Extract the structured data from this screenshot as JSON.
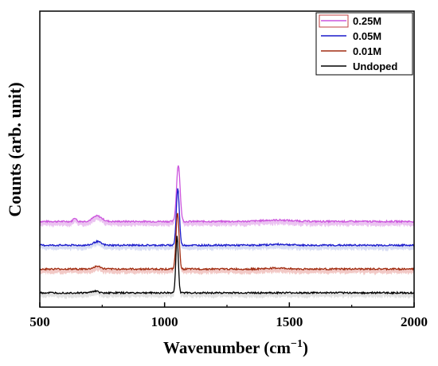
{
  "chart_data": {
    "type": "line",
    "title": "",
    "xlabel": "Wavenumber (cm",
    "xlabel_superscript": "−1",
    "xlabel_suffix": ")",
    "ylabel": "Counts (arb. unit)",
    "xlim": [
      500,
      2000
    ],
    "x_ticks": [
      500,
      1000,
      1500,
      2000
    ],
    "y_ticks_shown": false,
    "grid": false,
    "legend_position": "top-right",
    "legend": [
      "0.25M",
      "0.05M",
      "0.01M",
      "Undoped"
    ],
    "series": [
      {
        "name": "0.25M",
        "color": "#cc55dd",
        "fill": "#e8b8ee",
        "baseline": 0.78,
        "peaks": [
          {
            "center": 1055,
            "height": 0.62,
            "width": 7
          },
          {
            "center": 640,
            "height": 0.04,
            "width": 6
          },
          {
            "center": 730,
            "height": 0.06,
            "width": 18
          },
          {
            "center": 1450,
            "height": 0.015,
            "width": 60
          }
        ]
      },
      {
        "name": "0.05M",
        "color": "#1a1acc",
        "fill": "#d0d6f2",
        "baseline": 0.52,
        "peaks": [
          {
            "center": 1053,
            "height": 0.62,
            "width": 6
          },
          {
            "center": 730,
            "height": 0.04,
            "width": 15
          },
          {
            "center": 1460,
            "height": 0.01,
            "width": 40
          }
        ]
      },
      {
        "name": "0.01M",
        "color": "#a02c10",
        "fill": "#f0c0bc",
        "baseline": 0.26,
        "peaks": [
          {
            "center": 1052,
            "height": 0.62,
            "width": 6
          },
          {
            "center": 730,
            "height": 0.03,
            "width": 14
          },
          {
            "center": 1450,
            "height": 0.01,
            "width": 40
          }
        ]
      },
      {
        "name": "Undoped",
        "color": "#000000",
        "fill": "#dddddd",
        "baseline": 0.0,
        "peaks": [
          {
            "center": 1050,
            "height": 0.62,
            "width": 5
          },
          {
            "center": 720,
            "height": 0.02,
            "width": 12
          }
        ]
      }
    ]
  }
}
